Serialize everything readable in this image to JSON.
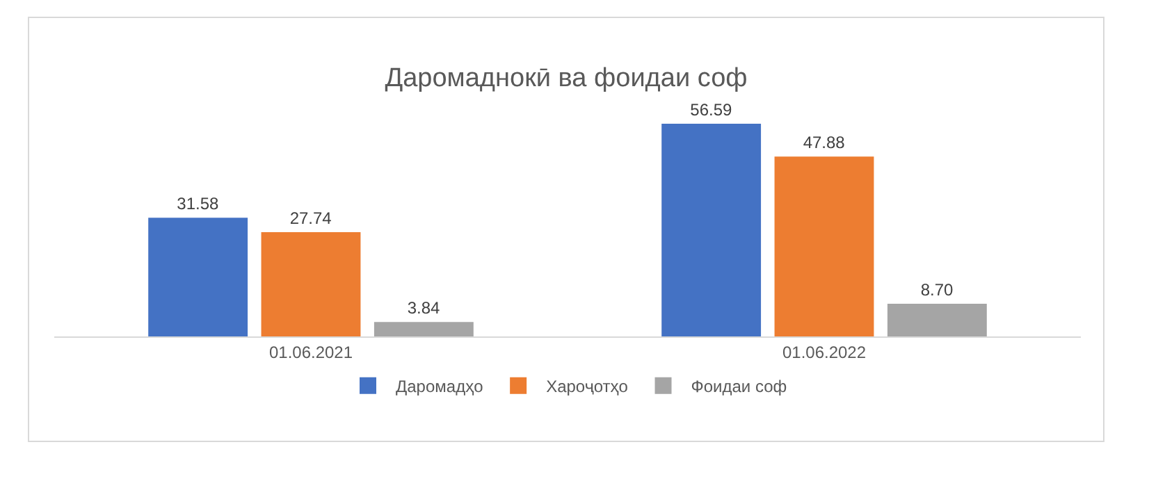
{
  "chart_data": {
    "type": "bar",
    "title": "Даромаднокӣ ва фоидаи соф",
    "categories": [
      "01.06.2021",
      "01.06.2022"
    ],
    "series": [
      {
        "name": "Даромадҳо",
        "color": "#4472c4",
        "values": [
          31.58,
          56.59
        ],
        "value_labels": [
          "31.58",
          "56.59"
        ]
      },
      {
        "name": "Хароҷотҳо",
        "color": "#ed7d31",
        "values": [
          27.74,
          47.88
        ],
        "value_labels": [
          "27.74",
          "47.88"
        ]
      },
      {
        "name": "Фоидаи соф",
        "color": "#a5a5a5",
        "values": [
          3.84,
          8.7
        ],
        "value_labels": [
          "3.84",
          "8.70"
        ]
      }
    ],
    "grid": false,
    "legend": "bottom",
    "tick_labels": "x"
  }
}
